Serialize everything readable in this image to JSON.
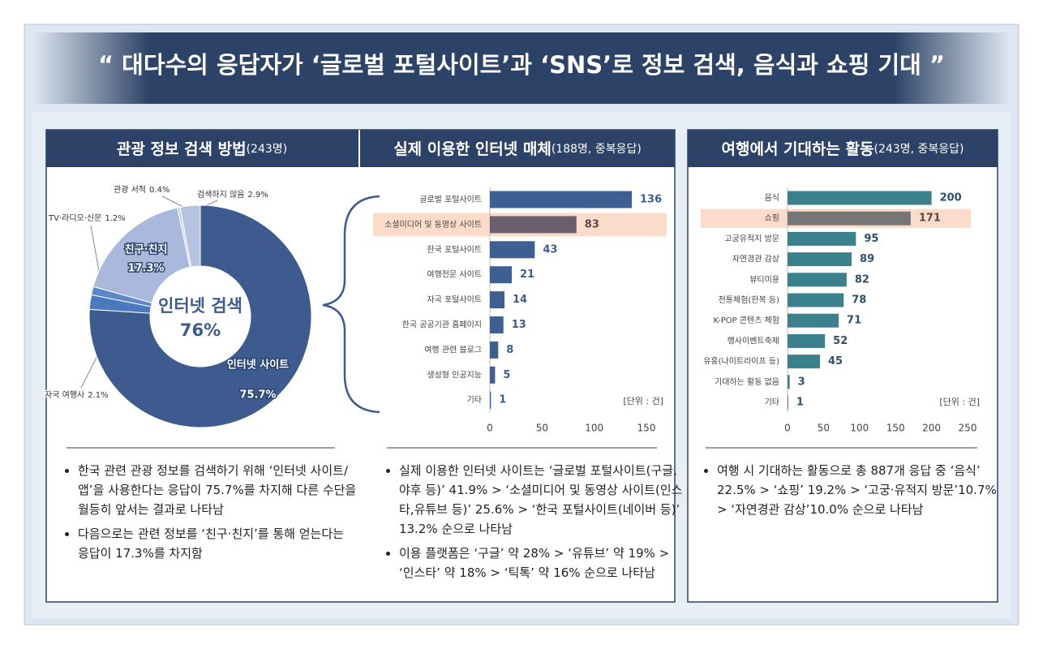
{
  "header": {
    "title": "“ 대다수의 응답자가 ‘글로벌 포털사이트’과 ‘SNS’로 정보 검색, 음식과 쇼핑 기대 ”"
  },
  "chart_data": [
    {
      "type": "donut",
      "title": "관광 정보 검색 방법",
      "subtitle": "(243명)",
      "categories": [
        "인터넷 사이트",
        "자국 여행사",
        "TV·라디오·신문",
        "친구·친지",
        "관광 서적",
        "검색하지 않음"
      ],
      "values": [
        75.7,
        2.1,
        1.2,
        17.3,
        0.4,
        2.9
      ],
      "value_labels": [
        "75.7%",
        "2.1%",
        "1.2%",
        "17.3%",
        "0.4%",
        "2.9%"
      ],
      "colors": [
        "#3d5b8e",
        "#4a79bd",
        "#5d88c6",
        "#a8b9db",
        "#c9d3e8",
        "#b6c3df"
      ],
      "center_label": "인터넷 검색",
      "center_value": 76,
      "center_value_label": "76%",
      "notes": [
        "한국 관련 관광 정보를 검색하기 위해 ‘인터넷 사이트/앱’을 사용한다는 응답이 75.7%를 차지해 다른 수단을 월등히 앞서는 결과로 나타남",
        "다음으로는 관련 정보를 ‘친구·친지’를 통해 얻는다는 응답이 17.3%를 차지함"
      ]
    },
    {
      "type": "bar",
      "title": "실제 이용한 인터넷 매체",
      "subtitle": "(188명, 중복응답)",
      "categories": [
        "글로벌 포털사이트",
        "소셜미디어 및 동영상 사이트",
        "한국 포털사이트",
        "여행전문 사이트",
        "자국 포털사이트",
        "한국 공공기관 홈페이지",
        "여행 관련 블로그",
        "생성형 인공지능",
        "기타"
      ],
      "values": [
        136,
        83,
        43,
        21,
        14,
        13,
        8,
        5,
        1
      ],
      "color": "#3d5f91",
      "colors": [
        "#3d5f91",
        "#6b5f6e",
        "#3d5f91",
        "#3d5f91",
        "#3d5f91",
        "#3d5f91",
        "#3d5f91",
        "#3d5f91",
        "#3d5f91"
      ],
      "highlight_color": "#fbdccb",
      "xlim": [
        0,
        150
      ],
      "xticks": [
        0,
        50,
        100,
        150
      ],
      "unit_label": "[단위 : 건]",
      "notes": [
        "실제 이용한 인터넷 사이트는 ‘글로벌 포털사이트(구글,야후 등)’ 41.9% > ‘소셜미디어 및 동영상 사이트(인스타,유튜브 등)’ 25.6% > ‘한국 포털사이트(네이버 등)’ 13.2% 순으로 나타남",
        "이용 플랫폼은 ‘구글’ 약 28% > ‘유튜브’ 약 19% > ‘인스타’ 약 18% > ‘틱톡’ 약 16% 순으로 나타남"
      ]
    },
    {
      "type": "bar",
      "title": "여행에서 기대하는 활동",
      "subtitle": "(243명, 중복응답)",
      "categories": [
        "음식",
        "쇼핑",
        "고궁유적지 방문",
        "자연경관 감상",
        "뷰티미용",
        "전통체험(한복 등)",
        "K-POP 콘텐츠 체험",
        "행사이벤트축제",
        "유흥(나이트라이프 등)",
        "기대하는 활동 없음",
        "기타"
      ],
      "values": [
        200,
        171,
        95,
        89,
        82,
        78,
        71,
        52,
        45,
        3,
        1
      ],
      "color": "#3a808d",
      "colors": [
        "#3a808d",
        "#767676",
        "#3a808d",
        "#3a808d",
        "#3a808d",
        "#3a808d",
        "#3a808d",
        "#3a808d",
        "#3a808d",
        "#3a808d",
        "#3a808d"
      ],
      "highlight_color": "#fbdccb",
      "xlim": [
        0,
        250
      ],
      "xticks": [
        0,
        50,
        100,
        150,
        200,
        250
      ],
      "unit_label": "[단위 : 건]",
      "notes": [
        "여행 시 기대하는 활동으로 총 887개 응답 중 ‘음식’ 22.5% > ‘쇼핑’ 19.2% > ‘고궁·유적지 방문’10.7% > ‘자연경관 감상’10.0% 순으로 나타남"
      ]
    }
  ]
}
